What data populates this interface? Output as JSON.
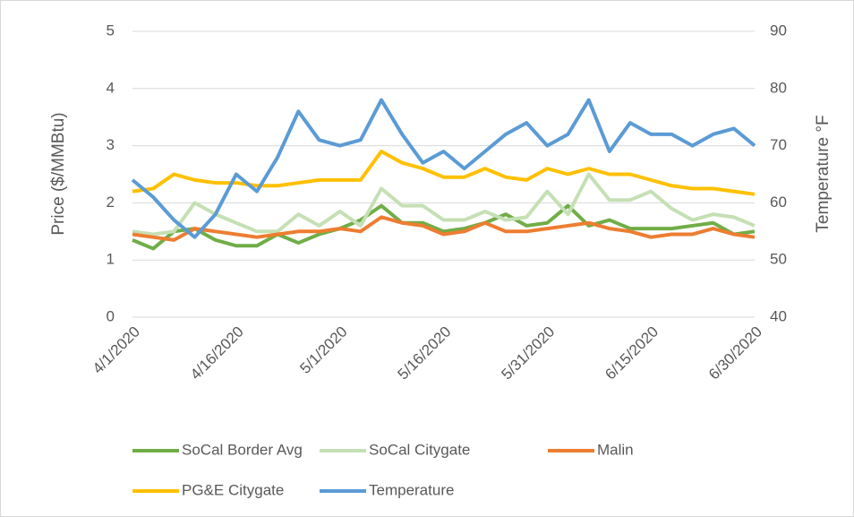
{
  "chart_data": {
    "type": "line",
    "categories": [
      "4/1/2020",
      null,
      null,
      null,
      null,
      "4/16/2020",
      null,
      null,
      null,
      null,
      "5/1/2020",
      null,
      null,
      null,
      null,
      "5/16/2020",
      null,
      null,
      null,
      null,
      "5/31/2020",
      null,
      null,
      null,
      null,
      "6/15/2020",
      null,
      null,
      null,
      null,
      "6/30/2020"
    ],
    "series": [
      {
        "name": "SoCal Border Avg",
        "color": "#70ad47",
        "values": [
          1.35,
          1.2,
          1.5,
          1.55,
          1.35,
          1.25,
          1.25,
          1.45,
          1.3,
          1.45,
          1.55,
          1.7,
          1.95,
          1.65,
          1.65,
          1.5,
          1.55,
          1.65,
          1.8,
          1.6,
          1.65,
          1.95,
          1.6,
          1.7,
          1.55,
          1.55,
          1.55,
          1.6,
          1.65,
          1.45,
          1.5
        ]
      },
      {
        "name": "SoCal Citygate",
        "color": "#c5e0b4",
        "values": [
          1.5,
          1.45,
          1.5,
          2.0,
          1.8,
          1.65,
          1.5,
          1.5,
          1.8,
          1.6,
          1.85,
          1.6,
          2.25,
          1.95,
          1.95,
          1.7,
          1.7,
          1.85,
          1.7,
          1.75,
          2.2,
          1.8,
          2.5,
          2.05,
          2.05,
          2.2,
          1.9,
          1.7,
          1.8,
          1.75,
          1.6
        ]
      },
      {
        "name": "Malin",
        "color": "#ed7d31",
        "values": [
          1.45,
          1.4,
          1.35,
          1.55,
          1.5,
          1.45,
          1.4,
          1.45,
          1.5,
          1.5,
          1.55,
          1.5,
          1.75,
          1.65,
          1.6,
          1.45,
          1.5,
          1.65,
          1.5,
          1.5,
          1.55,
          1.6,
          1.65,
          1.55,
          1.5,
          1.4,
          1.45,
          1.45,
          1.55,
          1.45,
          1.4
        ]
      },
      {
        "name": "PG&E Citygate",
        "color": "#ffc000",
        "values": [
          2.2,
          2.25,
          2.5,
          2.4,
          2.35,
          2.35,
          2.3,
          2.3,
          2.35,
          2.4,
          2.4,
          2.4,
          2.9,
          2.7,
          2.6,
          2.45,
          2.45,
          2.6,
          2.45,
          2.4,
          2.6,
          2.5,
          2.6,
          2.5,
          2.5,
          2.4,
          2.3,
          2.25,
          2.25,
          2.2,
          2.15
        ]
      },
      {
        "name": "Temperature",
        "color": "#5b9bd5",
        "axis": "y2",
        "values": [
          64,
          61,
          57,
          54,
          58,
          65,
          62,
          68,
          76,
          71,
          70,
          71,
          78,
          72,
          67,
          69,
          66,
          69,
          72,
          74,
          70,
          72,
          78,
          69,
          74,
          72,
          72,
          70,
          72,
          73,
          70
        ]
      }
    ],
    "ylabel": "Price ($/MMBtu)",
    "y2label": "Temperature °F",
    "ylim": [
      0,
      5
    ],
    "yticks": [
      0,
      1,
      2,
      3,
      4,
      5
    ],
    "y2lim": [
      40,
      90
    ],
    "y2ticks": [
      40,
      50,
      60,
      70,
      80,
      90
    ],
    "grid": true,
    "legend": "bottom"
  }
}
